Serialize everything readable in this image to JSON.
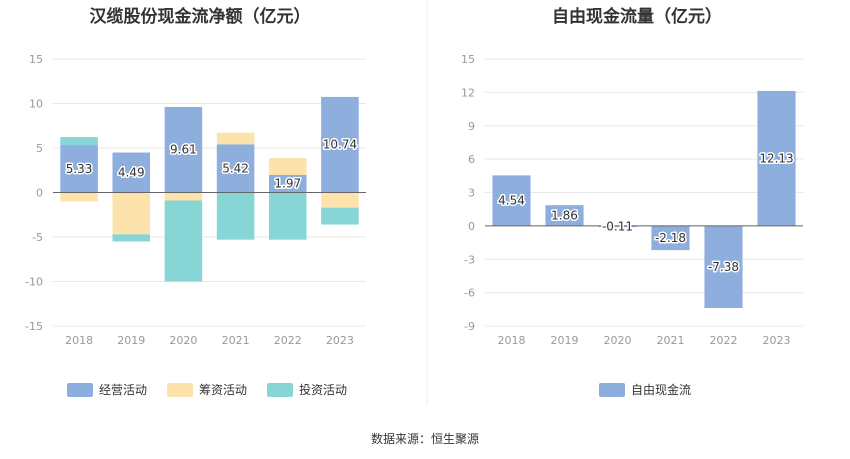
{
  "source_label": "数据来源：恒生聚源",
  "chart_data": [
    {
      "type": "bar",
      "stacked": true,
      "title": "汉缆股份现金流净额（亿元）",
      "categories": [
        "2018",
        "2019",
        "2020",
        "2021",
        "2022",
        "2023"
      ],
      "ylim": [
        -15,
        15
      ],
      "yticks": [
        15,
        10,
        5,
        0,
        -5,
        -10,
        -15
      ],
      "grid": true,
      "legend_position": "bottom",
      "series": [
        {
          "name": "经营活动",
          "color": "#8eaede",
          "values": [
            5.33,
            4.49,
            9.61,
            5.42,
            1.97,
            10.74
          ],
          "labels": [
            "5.33",
            "4.49",
            "9.61",
            "5.42",
            "1.97",
            "10.74"
          ]
        },
        {
          "name": "筹资活动",
          "color": "#fde2ac",
          "values": [
            -1.0,
            -4.7,
            -0.9,
            1.3,
            1.9,
            -1.7
          ]
        },
        {
          "name": "投资活动",
          "color": "#88d5d6",
          "values": [
            0.9,
            -0.8,
            -9.1,
            -5.3,
            -5.3,
            -1.9
          ]
        }
      ]
    },
    {
      "type": "bar",
      "title": "自由现金流量（亿元）",
      "categories": [
        "2018",
        "2019",
        "2020",
        "2021",
        "2022",
        "2023"
      ],
      "ylim": [
        -9,
        15
      ],
      "yticks": [
        15,
        12,
        9,
        6,
        3,
        0,
        -3,
        -6,
        -9
      ],
      "grid": true,
      "legend_position": "bottom",
      "series": [
        {
          "name": "自由现金流",
          "color": "#8eaede",
          "values": [
            4.54,
            1.86,
            -0.11,
            -2.18,
            -7.38,
            12.13
          ],
          "labels": [
            "4.54",
            "1.86",
            "-0.11",
            "-2.18",
            "-7.38",
            "12.13"
          ]
        }
      ]
    }
  ]
}
